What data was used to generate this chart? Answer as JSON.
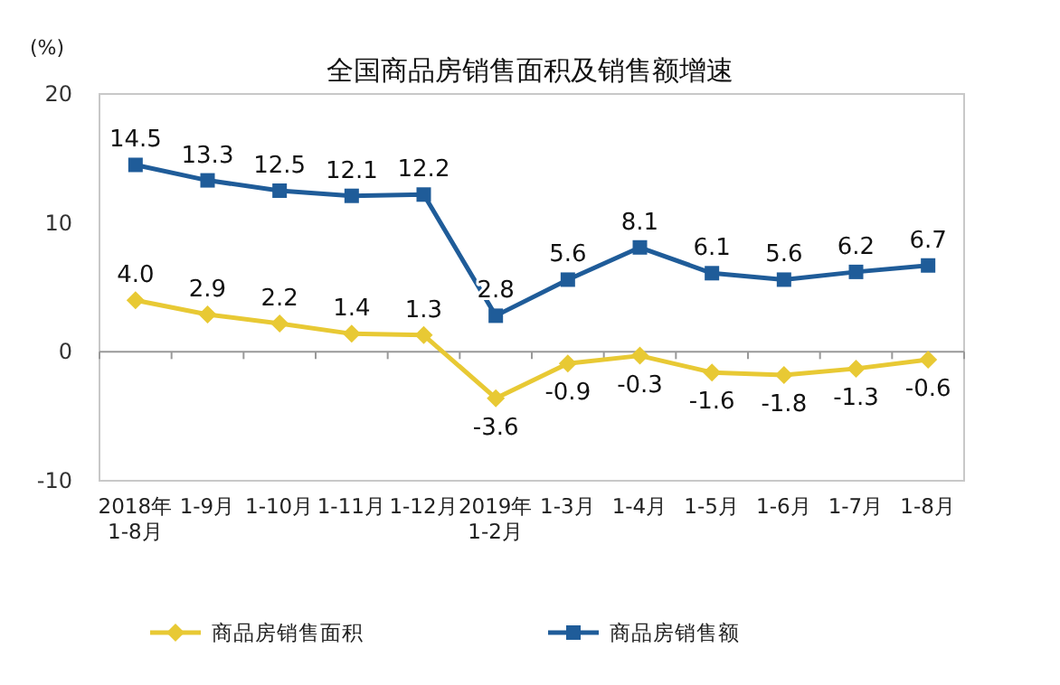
{
  "chart_data": {
    "type": "line",
    "title": "全国商品房销售面积及销售额增速",
    "ylabel": "(%)",
    "categories": [
      "2018年\n1-8月",
      "1-9月",
      "1-10月",
      "1-11月",
      "1-12月",
      "2019年\n1-2月",
      "1-3月",
      "1-4月",
      "1-5月",
      "1-6月",
      "1-7月",
      "1-8月"
    ],
    "series": [
      {
        "name": "商品房销售面积",
        "color": "#e8c934",
        "marker": "diamond",
        "values": [
          4.0,
          2.9,
          2.2,
          1.4,
          1.3,
          -3.6,
          -0.9,
          -0.3,
          -1.6,
          -1.8,
          -1.3,
          -0.6
        ],
        "value_labels": [
          "4.0",
          "2.9",
          "2.2",
          "1.4",
          "1.3",
          "-3.6",
          "-0.9",
          "-0.3",
          "-1.6",
          "-1.8",
          "-1.3",
          "-0.6"
        ]
      },
      {
        "name": "商品房销售额",
        "color": "#1f5c99",
        "marker": "square",
        "values": [
          14.5,
          13.3,
          12.5,
          12.1,
          12.2,
          2.8,
          5.6,
          8.1,
          6.1,
          5.6,
          6.2,
          6.7
        ],
        "value_labels": [
          "14.5",
          "13.3",
          "12.5",
          "12.1",
          "12.2",
          "2.8",
          "5.6",
          "8.1",
          "6.1",
          "5.6",
          "6.2",
          "6.7"
        ]
      }
    ],
    "ylim": [
      -10,
      20
    ],
    "yticks": [
      -10,
      0,
      10,
      20
    ],
    "legend": "bottom"
  }
}
